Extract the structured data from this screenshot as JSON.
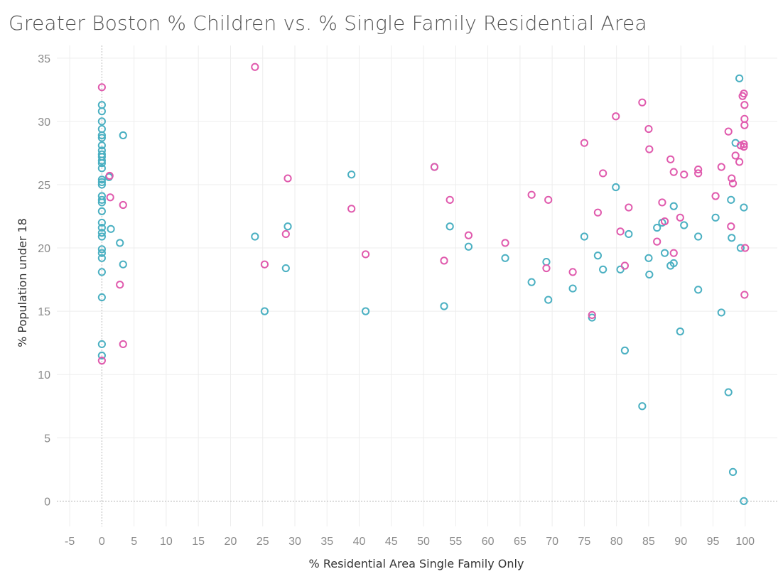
{
  "chart_data": {
    "type": "scatter",
    "title": "Greater Boston % Children vs. % Single Family Residential Area",
    "xlabel": "% Residential Area Single Family Only",
    "ylabel": "% Population under 18",
    "xlim": [
      -7,
      105
    ],
    "ylim": [
      -2,
      36
    ],
    "xticks": [
      -5,
      0,
      5,
      10,
      15,
      20,
      25,
      30,
      35,
      40,
      45,
      50,
      55,
      60,
      65,
      70,
      75,
      80,
      85,
      90,
      95,
      100
    ],
    "yticks": [
      0,
      5,
      10,
      15,
      20,
      25,
      30,
      35
    ],
    "grid": true,
    "legend": "none",
    "colors": {
      "teal": "#4bb0c2",
      "pink": "#e05aad"
    },
    "series": [
      {
        "color": "#4bb0c2",
        "points": [
          [
            0,
            31.3
          ],
          [
            0,
            30.8
          ],
          [
            0,
            30.0
          ],
          [
            0,
            29.4
          ],
          [
            0,
            28.9
          ],
          [
            0,
            28.7
          ],
          [
            0,
            28.1
          ],
          [
            0,
            27.7
          ],
          [
            0,
            27.4
          ],
          [
            0,
            27.2
          ],
          [
            0,
            26.9
          ],
          [
            0,
            26.7
          ],
          [
            0,
            26.3
          ],
          [
            0,
            25.4
          ],
          [
            0,
            25.2
          ],
          [
            0,
            25.0
          ],
          [
            0,
            24.1
          ],
          [
            0,
            23.8
          ],
          [
            0,
            23.6
          ],
          [
            0,
            22.9
          ],
          [
            0,
            22.0
          ],
          [
            0,
            21.6
          ],
          [
            0,
            21.2
          ],
          [
            0,
            20.9
          ],
          [
            0,
            19.9
          ],
          [
            0,
            19.6
          ],
          [
            0,
            19.2
          ],
          [
            0,
            18.1
          ],
          [
            0,
            16.1
          ],
          [
            0,
            12.4
          ],
          [
            0,
            11.5
          ],
          [
            1.1,
            25.6
          ],
          [
            1.4,
            21.5
          ],
          [
            2.8,
            20.4
          ],
          [
            3.3,
            28.9
          ],
          [
            3.3,
            18.7
          ],
          [
            23.8,
            20.9
          ],
          [
            25.3,
            15.0
          ],
          [
            28.6,
            18.4
          ],
          [
            28.9,
            21.7
          ],
          [
            38.8,
            25.8
          ],
          [
            41.0,
            15.0
          ],
          [
            51.7,
            26.4
          ],
          [
            53.2,
            15.4
          ],
          [
            54.1,
            21.7
          ],
          [
            57.0,
            20.1
          ],
          [
            62.7,
            19.2
          ],
          [
            66.8,
            17.3
          ],
          [
            69.1,
            18.9
          ],
          [
            69.4,
            15.9
          ],
          [
            73.2,
            16.8
          ],
          [
            75.0,
            20.9
          ],
          [
            76.2,
            14.5
          ],
          [
            77.1,
            19.4
          ],
          [
            77.9,
            18.3
          ],
          [
            79.9,
            24.8
          ],
          [
            80.6,
            18.3
          ],
          [
            81.3,
            11.9
          ],
          [
            81.9,
            21.1
          ],
          [
            84.0,
            7.5
          ],
          [
            85.0,
            19.2
          ],
          [
            85.1,
            17.9
          ],
          [
            86.3,
            21.6
          ],
          [
            87.1,
            22.0
          ],
          [
            87.5,
            19.6
          ],
          [
            88.4,
            18.6
          ],
          [
            88.9,
            18.8
          ],
          [
            88.9,
            23.3
          ],
          [
            89.9,
            13.4
          ],
          [
            90.5,
            21.8
          ],
          [
            92.7,
            20.9
          ],
          [
            92.7,
            16.7
          ],
          [
            95.4,
            22.4
          ],
          [
            96.3,
            14.9
          ],
          [
            97.4,
            8.6
          ],
          [
            97.8,
            23.8
          ],
          [
            97.9,
            20.8
          ],
          [
            98.1,
            2.3
          ],
          [
            98.5,
            28.3
          ],
          [
            99.1,
            33.4
          ],
          [
            99.3,
            20.0
          ],
          [
            99.8,
            23.2
          ],
          [
            99.8,
            0.0
          ]
        ]
      },
      {
        "color": "#e05aad",
        "points": [
          [
            0,
            32.7
          ],
          [
            0,
            11.1
          ],
          [
            1.2,
            25.7
          ],
          [
            1.3,
            24.0
          ],
          [
            2.8,
            17.1
          ],
          [
            3.3,
            23.4
          ],
          [
            3.3,
            12.4
          ],
          [
            23.8,
            34.3
          ],
          [
            25.3,
            18.7
          ],
          [
            28.6,
            21.1
          ],
          [
            28.9,
            25.5
          ],
          [
            38.8,
            23.1
          ],
          [
            41.0,
            19.5
          ],
          [
            51.7,
            26.4
          ],
          [
            53.2,
            19.0
          ],
          [
            54.1,
            23.8
          ],
          [
            57.0,
            21.0
          ],
          [
            62.7,
            20.4
          ],
          [
            66.8,
            24.2
          ],
          [
            69.1,
            18.4
          ],
          [
            69.4,
            23.8
          ],
          [
            73.2,
            18.1
          ],
          [
            75.0,
            28.3
          ],
          [
            76.2,
            14.7
          ],
          [
            77.1,
            22.8
          ],
          [
            77.9,
            25.9
          ],
          [
            79.9,
            30.4
          ],
          [
            80.6,
            21.3
          ],
          [
            81.3,
            18.6
          ],
          [
            81.9,
            23.2
          ],
          [
            84.0,
            31.5
          ],
          [
            85.0,
            29.4
          ],
          [
            85.1,
            27.8
          ],
          [
            86.3,
            20.5
          ],
          [
            87.1,
            23.6
          ],
          [
            87.5,
            22.1
          ],
          [
            88.4,
            27.0
          ],
          [
            88.9,
            26.0
          ],
          [
            88.9,
            19.6
          ],
          [
            89.9,
            22.4
          ],
          [
            90.5,
            25.8
          ],
          [
            92.7,
            25.9
          ],
          [
            92.7,
            26.2
          ],
          [
            95.4,
            24.1
          ],
          [
            96.3,
            26.4
          ],
          [
            97.4,
            29.2
          ],
          [
            97.8,
            21.7
          ],
          [
            97.9,
            25.5
          ],
          [
            98.1,
            25.1
          ],
          [
            98.5,
            27.3
          ],
          [
            99.1,
            26.8
          ],
          [
            99.3,
            28.1
          ],
          [
            99.6,
            32.0
          ],
          [
            99.8,
            32.2
          ],
          [
            99.8,
            28.2
          ],
          [
            99.8,
            28.0
          ],
          [
            99.9,
            31.3
          ],
          [
            99.9,
            30.2
          ],
          [
            99.9,
            29.7
          ],
          [
            100.0,
            20.0
          ],
          [
            99.9,
            16.3
          ]
        ]
      }
    ]
  }
}
